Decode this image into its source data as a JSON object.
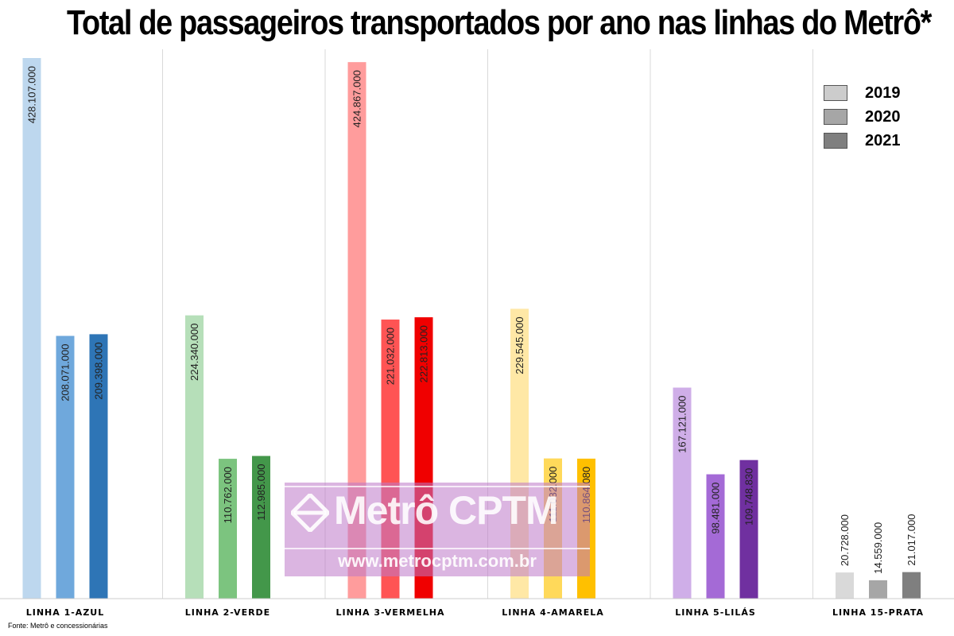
{
  "title": "Total de passageiros transportados por ano nas linhas do Metrô*",
  "source": "Fonte: Metrô e concessionárias",
  "watermark": {
    "brand": "Metrô CPTM",
    "url": "www.metrocptm.com.br"
  },
  "legend": [
    {
      "label": "2019",
      "color": "#cccccc"
    },
    {
      "label": "2020",
      "color": "#a6a6a6"
    },
    {
      "label": "2021",
      "color": "#7f7f7f"
    }
  ],
  "chart_data": {
    "type": "bar",
    "title": "Total de passageiros transportados por ano nas linhas do Metrô*",
    "xlabel": "",
    "ylabel": "",
    "ylim": [
      0,
      430000000
    ],
    "grid": false,
    "legend_position": "top-right",
    "categories": [
      "LINHA 1-AZUL",
      "LINHA 2-VERDE",
      "LINHA 3-VERMELHA",
      "LINHA 4-AMARELA",
      "LINHA 5-LILÁS",
      "LINHA 15-PRATA"
    ],
    "series": [
      {
        "name": "2019",
        "values": [
          428107000,
          224340000,
          424867000,
          229545000,
          167121000,
          20728000
        ],
        "labels": [
          "428.107.000",
          "224.340.000",
          "424.867.000",
          "229.545.000",
          "167.121.000",
          "20.728.000"
        ]
      },
      {
        "name": "2020",
        "values": [
          208071000,
          110762000,
          221032000,
          111032000,
          98481000,
          14559000
        ],
        "labels": [
          "208.071.000",
          "110.762.000",
          "221.032.000",
          "111.032.000",
          "98.481.000",
          "14.559.000"
        ]
      },
      {
        "name": "2021",
        "values": [
          209398000,
          112985000,
          222813000,
          110864080,
          109748830,
          21017000
        ],
        "labels": [
          "209.398.000",
          "112.985.000",
          "222.813.000",
          "110.864.080",
          "109.748.830",
          "21.017.000"
        ]
      }
    ],
    "colors": [
      [
        "#bdd7ee",
        "#6fa8dc",
        "#2e75b6"
      ],
      [
        "#b6dfb9",
        "#7cc47f",
        "#43974a"
      ],
      [
        "#ff9c9c",
        "#ff5454",
        "#f00000"
      ],
      [
        "#ffe8a6",
        "#ffd95a",
        "#ffc000"
      ],
      [
        "#cfaee8",
        "#a46ad6",
        "#7030a0"
      ],
      [
        "#d9d9d9",
        "#a6a6a6",
        "#7f7f7f"
      ]
    ]
  }
}
